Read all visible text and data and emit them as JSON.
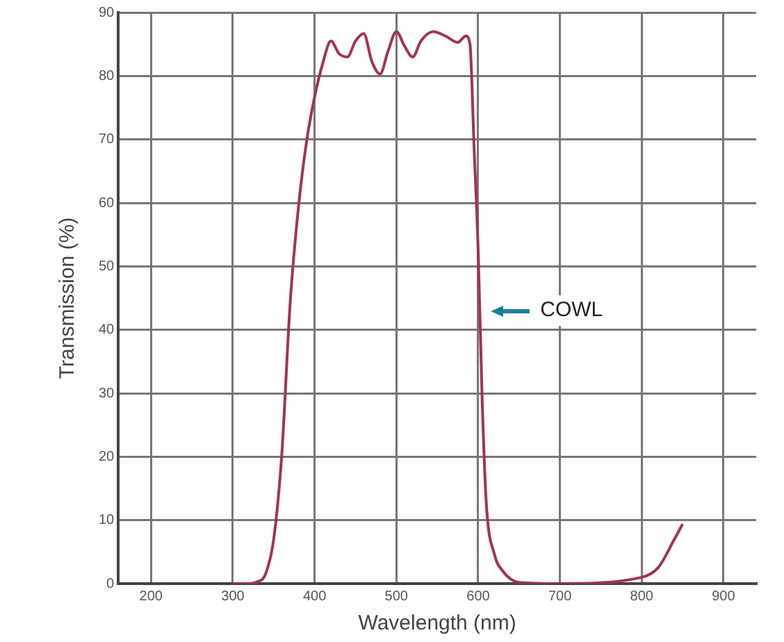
{
  "chart_data": {
    "type": "line",
    "xlabel": "Wavelength (nm)",
    "ylabel": "Transmission (%)",
    "xlim": [
      160,
      940
    ],
    "xticks": [
      200,
      300,
      400,
      500,
      600,
      700,
      800,
      900
    ],
    "ylim": [
      0,
      90
    ],
    "yticks": [
      0,
      10,
      20,
      30,
      40,
      50,
      60,
      70,
      80,
      90
    ],
    "grid": true,
    "legend": false,
    "marker": "none",
    "line_style": "solid",
    "annotations": [
      "COWL"
    ],
    "x": [
      300,
      320,
      330,
      340,
      350,
      360,
      370,
      380,
      390,
      400,
      410,
      420,
      430,
      440,
      450,
      460,
      470,
      480,
      490,
      500,
      510,
      520,
      530,
      545,
      560,
      575,
      585,
      590,
      595,
      600,
      605,
      610,
      620,
      630,
      650,
      700,
      800,
      820,
      840,
      850
    ],
    "series": [
      {
        "color": "#a3334f",
        "values": [
          0,
          0,
          0.3,
          1.5,
          7,
          20.6,
          44,
          59,
          69.5,
          76.7,
          82,
          85.5,
          83.5,
          83,
          85.5,
          86.7,
          82.3,
          80.3,
          84,
          87,
          84.7,
          83,
          85.5,
          87,
          86.3,
          85.3,
          86.3,
          85,
          68.8,
          52.6,
          28.6,
          12.6,
          4.6,
          2,
          0.2,
          0,
          1,
          2.5,
          7,
          9.4
        ]
      }
    ]
  }
}
